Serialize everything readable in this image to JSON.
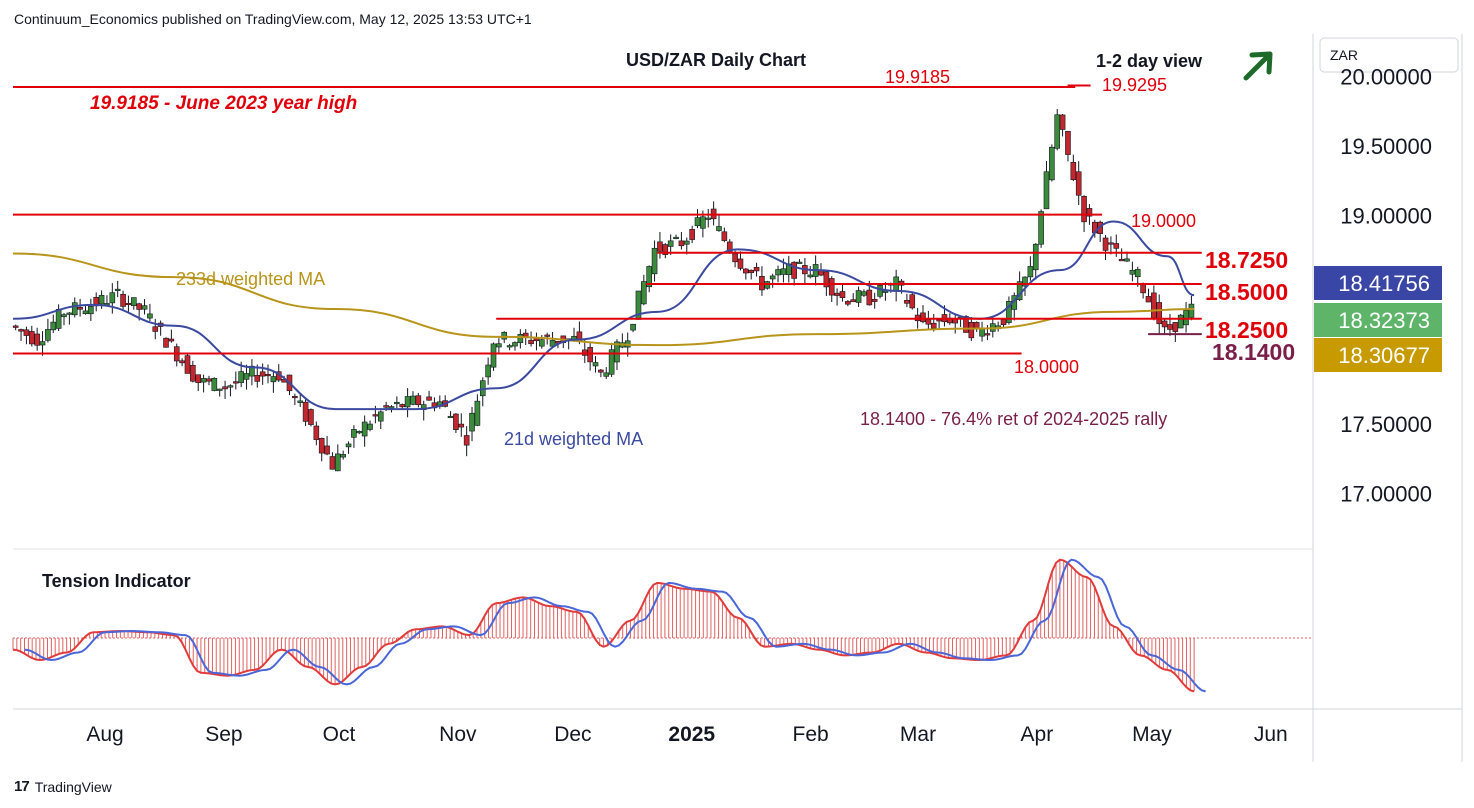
{
  "header": {
    "publisher_line": "Continuum_Economics published on TradingView.com, May 12, 2025 13:53 UTC+1"
  },
  "footer": {
    "brand": "TradingView",
    "logo_glyph": "17"
  },
  "colors": {
    "level_line": "#e0000a",
    "support_line": "#7a1f4a",
    "ma21": "#3b4aa0",
    "ma233": "#b8941a",
    "up_candle": "#3c8a3c",
    "down_candle": "#c1272d",
    "arrow": "#1d6a2a",
    "tension_fill": "#e06060",
    "tension_line_red": "#e23b3b",
    "tension_line_blue": "#4a66d8",
    "badge_blue": "#3a46a6",
    "badge_green": "#5eb56a",
    "badge_gold": "#c79a00"
  },
  "chart_data": {
    "type": "candlestick",
    "title": "USD/ZAR Daily Chart",
    "subtitle": "1-2 day view",
    "currency": "ZAR",
    "y_axis_ticks": [
      "20.00000",
      "19.50000",
      "19.00000",
      "18.50000",
      "18.00000",
      "17.50000",
      "17.00000"
    ],
    "y_tick_values": [
      20.0,
      19.5,
      19.0,
      18.5,
      18.0,
      17.5,
      17.0
    ],
    "ylim": [
      16.6,
      20.3
    ],
    "x_axis_ticks": [
      {
        "label": "Aug",
        "date": "2024-08-01"
      },
      {
        "label": "Sep",
        "date": "2024-09-01"
      },
      {
        "label": "Oct",
        "date": "2024-10-01"
      },
      {
        "label": "Nov",
        "date": "2024-11-01"
      },
      {
        "label": "Dec",
        "date": "2024-12-01"
      },
      {
        "label": "2025",
        "date": "2025-01-01"
      },
      {
        "label": "Feb",
        "date": "2025-02-01"
      },
      {
        "label": "Mar",
        "date": "2025-03-01"
      },
      {
        "label": "Apr",
        "date": "2025-04-01"
      },
      {
        "label": "May",
        "date": "2025-05-01"
      },
      {
        "label": "Jun",
        "date": "2025-06-01"
      }
    ],
    "x_range": [
      "2024-07-08",
      "2025-06-12"
    ],
    "close_series": [
      [
        "2024-07-08",
        18.2
      ],
      [
        "2024-07-15",
        18.1
      ],
      [
        "2024-07-22",
        18.3
      ],
      [
        "2024-07-29",
        18.35
      ],
      [
        "2024-08-05",
        18.42
      ],
      [
        "2024-08-12",
        18.3
      ],
      [
        "2024-08-19",
        18.05
      ],
      [
        "2024-08-26",
        17.8
      ],
      [
        "2024-09-02",
        17.76
      ],
      [
        "2024-09-09",
        17.85
      ],
      [
        "2024-09-16",
        17.85
      ],
      [
        "2024-09-23",
        17.55
      ],
      [
        "2024-09-30",
        17.2
      ],
      [
        "2024-10-07",
        17.45
      ],
      [
        "2024-10-14",
        17.6
      ],
      [
        "2024-10-21",
        17.65
      ],
      [
        "2024-10-28",
        17.65
      ],
      [
        "2024-11-04",
        17.4
      ],
      [
        "2024-11-11",
        18.1
      ],
      [
        "2024-11-18",
        18.1
      ],
      [
        "2024-11-25",
        18.1
      ],
      [
        "2024-12-02",
        18.1
      ],
      [
        "2024-12-09",
        17.85
      ],
      [
        "2024-12-16",
        18.15
      ],
      [
        "2024-12-23",
        18.75
      ],
      [
        "2024-12-30",
        18.8
      ],
      [
        "2025-01-06",
        19.0
      ],
      [
        "2025-01-13",
        18.7
      ],
      [
        "2025-01-20",
        18.5
      ],
      [
        "2025-01-27",
        18.6
      ],
      [
        "2025-02-03",
        18.6
      ],
      [
        "2025-02-10",
        18.4
      ],
      [
        "2025-02-17",
        18.4
      ],
      [
        "2025-02-24",
        18.5
      ],
      [
        "2025-03-03",
        18.2
      ],
      [
        "2025-03-10",
        18.25
      ],
      [
        "2025-03-17",
        18.15
      ],
      [
        "2025-03-24",
        18.25
      ],
      [
        "2025-03-31",
        18.6
      ],
      [
        "2025-04-07",
        19.7
      ],
      [
        "2025-04-14",
        19.0
      ],
      [
        "2025-04-21",
        18.75
      ],
      [
        "2025-04-28",
        18.55
      ],
      [
        "2025-05-05",
        18.15
      ],
      [
        "2025-05-12",
        18.31
      ]
    ],
    "ma21_series": [
      [
        "2024-07-08",
        18.25
      ],
      [
        "2024-07-29",
        18.35
      ],
      [
        "2024-08-19",
        18.2
      ],
      [
        "2024-09-09",
        17.9
      ],
      [
        "2024-09-30",
        17.6
      ],
      [
        "2024-10-21",
        17.6
      ],
      [
        "2024-11-11",
        17.75
      ],
      [
        "2024-12-02",
        18.1
      ],
      [
        "2024-12-23",
        18.3
      ],
      [
        "2025-01-13",
        18.75
      ],
      [
        "2025-02-03",
        18.6
      ],
      [
        "2025-02-24",
        18.45
      ],
      [
        "2025-03-17",
        18.25
      ],
      [
        "2025-04-07",
        18.6
      ],
      [
        "2025-04-21",
        18.95
      ],
      [
        "2025-05-05",
        18.7
      ],
      [
        "2025-05-12",
        18.42
      ]
    ],
    "ma233_series": [
      [
        "2024-07-08",
        18.72
      ],
      [
        "2024-08-19",
        18.55
      ],
      [
        "2024-09-30",
        18.32
      ],
      [
        "2024-11-11",
        18.12
      ],
      [
        "2024-12-23",
        18.06
      ],
      [
        "2025-02-03",
        18.14
      ],
      [
        "2025-03-17",
        18.18
      ],
      [
        "2025-04-21",
        18.3
      ],
      [
        "2025-05-12",
        18.32
      ]
    ],
    "levels": [
      {
        "value": 19.9185,
        "label": "19.9185",
        "note": "19.9185 - June 2023 year high",
        "from": "2024-07-08",
        "to": "2025-04-11"
      },
      {
        "value": 19.9295,
        "label": "19.9295",
        "from": "2025-04-09",
        "to": "2025-04-15"
      },
      {
        "value": 19.0,
        "label": "19.0000",
        "from": "2024-07-08",
        "to": "2025-04-18"
      },
      {
        "value": 18.725,
        "label": "18.7250",
        "from": "2024-12-23",
        "to": "2025-05-14"
      },
      {
        "value": 18.5,
        "label": "18.5000",
        "from": "2024-12-20",
        "to": "2025-05-14"
      },
      {
        "value": 18.25,
        "label": "18.2500",
        "from": "2024-11-11",
        "to": "2025-05-14"
      },
      {
        "value": 18.14,
        "label": "18.1400",
        "note": "18.1400 - 76.4% ret of 2024-2025 rally",
        "from": "2025-04-30",
        "to": "2025-05-14"
      },
      {
        "value": 18.0,
        "label": "18.0000",
        "from": "2024-07-08",
        "to": "2025-03-28"
      }
    ],
    "annotations": {
      "ma233_label": "233d weighted MA",
      "ma21_label": "21d weighted MA"
    },
    "price_badges": [
      {
        "label": "18.41756",
        "value": 18.41756,
        "series": "21d weighted MA"
      },
      {
        "label": "18.32373",
        "value": 18.32373,
        "series": "last price"
      },
      {
        "label": "18.30677",
        "value": 18.30677,
        "series": "233d weighted MA"
      }
    ],
    "tension_indicator": {
      "title": "Tension Indicator",
      "values": [
        [
          "2024-07-08",
          -0.2
        ],
        [
          "2024-07-15",
          -0.38
        ],
        [
          "2024-07-22",
          -0.25
        ],
        [
          "2024-07-29",
          0.1
        ],
        [
          "2024-08-05",
          0.12
        ],
        [
          "2024-08-12",
          0.1
        ],
        [
          "2024-08-19",
          0.05
        ],
        [
          "2024-08-26",
          -0.6
        ],
        [
          "2024-09-02",
          -0.65
        ],
        [
          "2024-09-09",
          -0.55
        ],
        [
          "2024-09-16",
          -0.2
        ],
        [
          "2024-09-23",
          -0.5
        ],
        [
          "2024-09-30",
          -0.8
        ],
        [
          "2024-10-07",
          -0.5
        ],
        [
          "2024-10-14",
          -0.1
        ],
        [
          "2024-10-21",
          0.15
        ],
        [
          "2024-10-28",
          0.2
        ],
        [
          "2024-11-04",
          0.05
        ],
        [
          "2024-11-11",
          0.6
        ],
        [
          "2024-11-18",
          0.7
        ],
        [
          "2024-11-25",
          0.55
        ],
        [
          "2024-12-02",
          0.45
        ],
        [
          "2024-12-09",
          -0.15
        ],
        [
          "2024-12-16",
          0.3
        ],
        [
          "2024-12-23",
          0.95
        ],
        [
          "2024-12-30",
          0.85
        ],
        [
          "2025-01-06",
          0.8
        ],
        [
          "2025-01-13",
          0.35
        ],
        [
          "2025-01-20",
          -0.15
        ],
        [
          "2025-01-27",
          -0.1
        ],
        [
          "2025-02-03",
          -0.2
        ],
        [
          "2025-02-10",
          -0.3
        ],
        [
          "2025-02-17",
          -0.25
        ],
        [
          "2025-02-24",
          -0.1
        ],
        [
          "2025-03-03",
          -0.25
        ],
        [
          "2025-03-10",
          -0.35
        ],
        [
          "2025-03-17",
          -0.38
        ],
        [
          "2025-03-24",
          -0.3
        ],
        [
          "2025-03-31",
          0.3
        ],
        [
          "2025-04-07",
          1.35
        ],
        [
          "2025-04-14",
          1.05
        ],
        [
          "2025-04-21",
          0.2
        ],
        [
          "2025-04-28",
          -0.3
        ],
        [
          "2025-05-05",
          -0.55
        ],
        [
          "2025-05-12",
          -0.92
        ]
      ]
    }
  }
}
